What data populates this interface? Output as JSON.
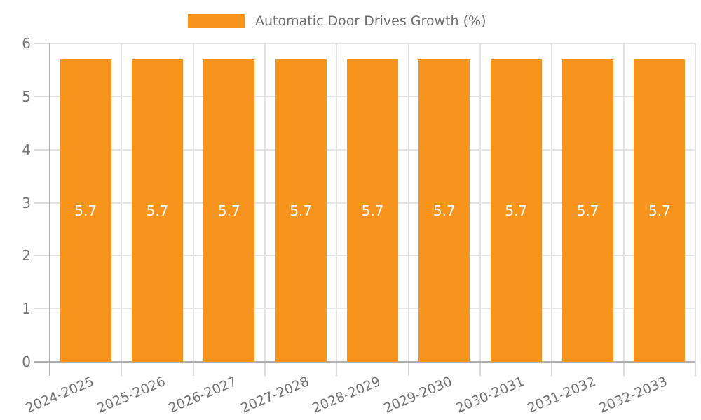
{
  "legend": {
    "label": "Automatic Door Drives Growth (%)",
    "swatch_color": "#F6941E"
  },
  "chart_data": {
    "type": "bar",
    "title": "Automatic Door Drives Growth (%)",
    "categories": [
      "2024-2025",
      "2025-2026",
      "2026-2027",
      "2027-2028",
      "2028-2029",
      "2029-2030",
      "2030-2031",
      "2031-2032",
      "2032-2033"
    ],
    "series": [
      {
        "name": "Automatic Door Drives Growth (%)",
        "values": [
          5.7,
          5.7,
          5.7,
          5.7,
          5.7,
          5.7,
          5.7,
          5.7,
          5.7
        ],
        "bar_labels": [
          "5.7",
          "5.7",
          "5.7",
          "5.7",
          "5.7",
          "5.7",
          "5.7",
          "5.7",
          "5.7"
        ]
      }
    ],
    "xlabel": "",
    "ylabel": "",
    "ylim": [
      0,
      6
    ],
    "yticks": [
      0,
      1,
      2,
      3,
      4,
      5,
      6
    ],
    "ytick_labels": [
      "0",
      "1",
      "2",
      "3",
      "4",
      "5",
      "6"
    ],
    "grid": true,
    "legend_position": "top",
    "colors": {
      "bar": "#F6941E",
      "bar_label": "#FFFFFF",
      "axis_line": "#ADADAD",
      "gridline": "#E4E4E4",
      "tick": "#DCDCDC",
      "tick_label": "#747474"
    }
  }
}
